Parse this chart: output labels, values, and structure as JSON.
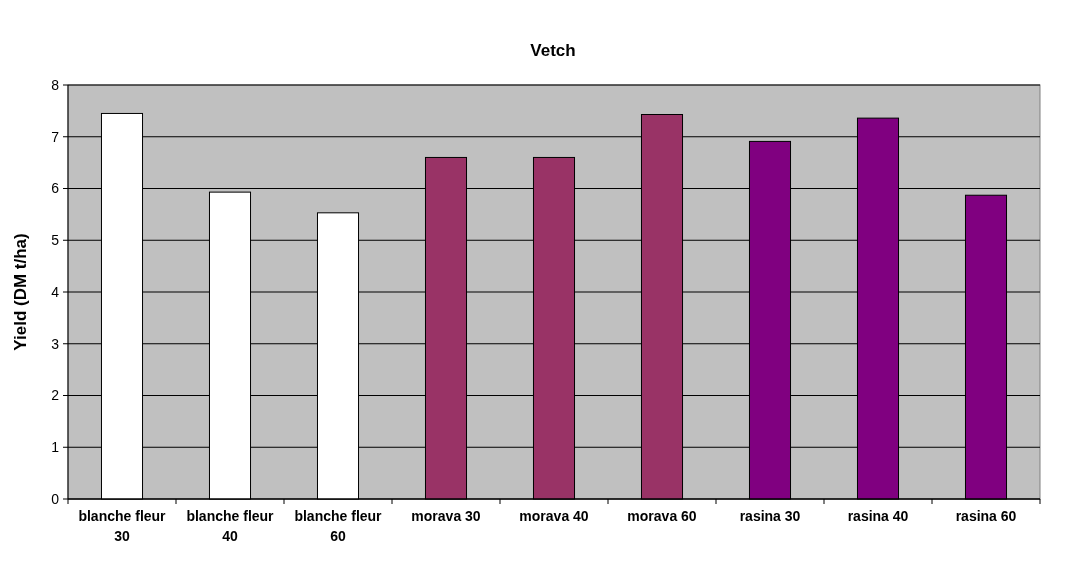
{
  "chart_data": {
    "type": "bar",
    "title": "Vetch",
    "ylabel": "Yield (DM t/ha)",
    "categories": [
      "blanche fleur 30",
      "blanche fleur 40",
      "blanche fleur 60",
      "morava 30",
      "morava 40",
      "morava 60",
      "rasina 30",
      "rasina 40",
      "rasina 60"
    ],
    "values": [
      7.45,
      5.93,
      5.53,
      6.6,
      6.6,
      7.43,
      6.91,
      7.36,
      5.87
    ],
    "colors": [
      "#ffffff",
      "#ffffff",
      "#ffffff",
      "#993366",
      "#993366",
      "#993366",
      "#800080",
      "#800080",
      "#800080"
    ],
    "ylim": [
      0,
      8
    ],
    "yticks": [
      0,
      1,
      2,
      3,
      4,
      5,
      6,
      7,
      8
    ],
    "grid": "y"
  }
}
